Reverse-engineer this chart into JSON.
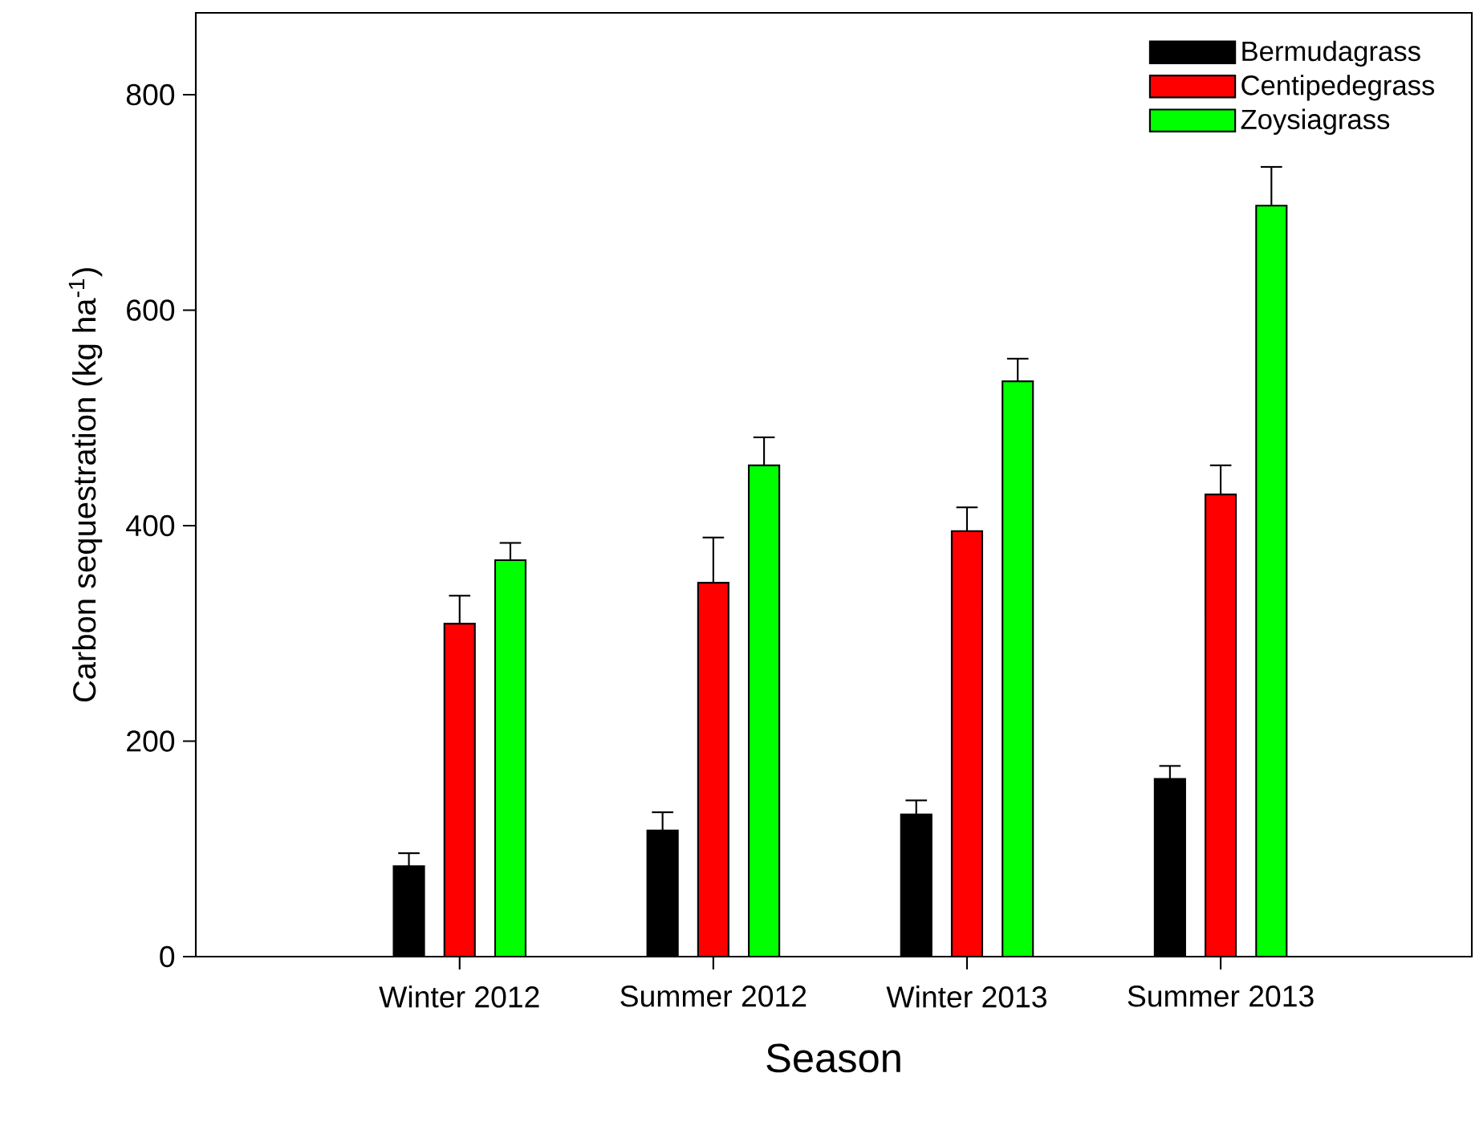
{
  "chart_data": {
    "type": "bar",
    "xlabel": "Season",
    "ylabel": "Carbon sequestration (kg ha$^{-1}$)",
    "categories": [
      "Winter 2012",
      "Summer 2012",
      "Winter 2013",
      "Summer 2013"
    ],
    "series": [
      {
        "name": "Bermudagrass",
        "color": "#000000",
        "values": [
          84,
          117,
          132,
          165
        ],
        "errors": [
          12,
          17,
          13,
          12
        ]
      },
      {
        "name": "Centipedegrass",
        "color": "#ff0000",
        "values": [
          309,
          347,
          395,
          429
        ],
        "errors": [
          26,
          42,
          22,
          27
        ]
      },
      {
        "name": "Zoysiagrass",
        "color": "#00ff00",
        "values": [
          368,
          456,
          534,
          697
        ],
        "errors": [
          16,
          26,
          21,
          36
        ]
      }
    ],
    "ylim": [
      0,
      876
    ],
    "yticks": [
      0,
      200,
      400,
      600,
      800
    ],
    "grid": false,
    "legend": "top right"
  }
}
